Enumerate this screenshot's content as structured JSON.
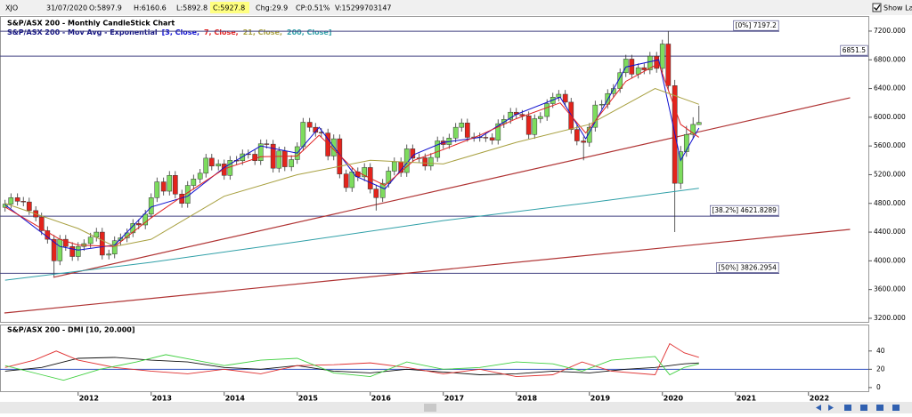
{
  "header": {
    "symbol": "XJO",
    "date": "31/07/2020",
    "open": "O:5897.9",
    "high": "H:6160.6",
    "low": "L:5892.8",
    "close": "C:5927.8",
    "change": "Chg:29.9",
    "change_pct": "CP:0.51%",
    "volume": "V:15299703147",
    "show_last": "Show Last"
  },
  "chart_data": [
    {
      "type": "candlestick",
      "title": "S&P/ASX 200 - Monthly CandleStick Chart",
      "subtitle": "S&P/ASX 200 - Mov Avg - Exponential",
      "up_color": "#7ddc5e",
      "down_color": "#e3241c",
      "xlim": [
        2010.93,
        2022.82
      ],
      "xticks": [
        2012,
        2013,
        2014,
        2015,
        2016,
        2017,
        2018,
        2019,
        2020,
        2021,
        2022
      ],
      "ylim": [
        3150,
        7410
      ],
      "yticks": [
        {
          "value": 3200,
          "label": "3200.000"
        },
        {
          "value": 3600,
          "label": "3600.000"
        },
        {
          "value": 4000,
          "label": "4000.000"
        },
        {
          "value": 4400,
          "label": "4400.000"
        },
        {
          "value": 4800,
          "label": "4800.000"
        },
        {
          "value": 5200,
          "label": "5200.000"
        },
        {
          "value": 5600,
          "label": "5600.000"
        },
        {
          "value": 6000,
          "label": "6000.000"
        },
        {
          "value": 6400,
          "label": "6400.000"
        },
        {
          "value": 6800,
          "label": "6800.000"
        },
        {
          "value": 7200,
          "label": "7200.000"
        }
      ],
      "grid": false,
      "candles": {
        "x": [
          2011,
          2011.08,
          2011.17,
          2011.25,
          2011.33,
          2011.42,
          2011.5,
          2011.58,
          2011.67,
          2011.75,
          2011.83,
          2011.92,
          2012,
          2012.08,
          2012.17,
          2012.25,
          2012.33,
          2012.42,
          2012.5,
          2012.58,
          2012.67,
          2012.75,
          2012.83,
          2012.92,
          2013,
          2013.08,
          2013.17,
          2013.25,
          2013.33,
          2013.42,
          2013.5,
          2013.58,
          2013.67,
          2013.75,
          2013.83,
          2013.92,
          2014,
          2014.08,
          2014.17,
          2014.25,
          2014.33,
          2014.42,
          2014.5,
          2014.58,
          2014.67,
          2014.75,
          2014.83,
          2014.92,
          2015,
          2015.08,
          2015.17,
          2015.25,
          2015.33,
          2015.42,
          2015.5,
          2015.58,
          2015.67,
          2015.75,
          2015.83,
          2015.92,
          2016,
          2016.08,
          2016.17,
          2016.25,
          2016.33,
          2016.42,
          2016.5,
          2016.58,
          2016.67,
          2016.75,
          2016.83,
          2016.92,
          2017,
          2017.08,
          2017.17,
          2017.25,
          2017.33,
          2017.42,
          2017.5,
          2017.58,
          2017.67,
          2017.75,
          2017.83,
          2017.92,
          2018,
          2018.08,
          2018.17,
          2018.25,
          2018.33,
          2018.42,
          2018.5,
          2018.58,
          2018.67,
          2018.75,
          2018.83,
          2018.92,
          2019,
          2019.08,
          2019.17,
          2019.25,
          2019.33,
          2019.42,
          2019.5,
          2019.58,
          2019.67,
          2019.75,
          2019.83,
          2019.92,
          2020,
          2020.08,
          2020.17,
          2020.25,
          2020.33,
          2020.42,
          2020.5
        ],
        "open": [
          4745,
          4790,
          4880,
          4830,
          4820,
          4700,
          4610,
          4420,
          4300,
          4000,
          4300,
          4200,
          4060,
          4200,
          4240,
          4330,
          4400,
          4080,
          4095,
          4280,
          4320,
          4390,
          4520,
          4500,
          4650,
          4880,
          5100,
          4970,
          5190,
          4930,
          4800,
          5050,
          5140,
          5220,
          5430,
          5320,
          5350,
          5190,
          5400,
          5395,
          5490,
          5485,
          5395,
          5630,
          5625,
          5290,
          5530,
          5310,
          5410,
          5590,
          5930,
          5860,
          5790,
          5780,
          5460,
          5700,
          5210,
          5020,
          5240,
          5170,
          5300,
          5000,
          4880,
          5080,
          5250,
          5380,
          5230,
          5560,
          5430,
          5435,
          5320,
          5440,
          5670,
          5620,
          5710,
          5860,
          5920,
          5720,
          5725,
          5720,
          5715,
          5680,
          5910,
          5970,
          6070,
          6040,
          6020,
          5760,
          5980,
          6010,
          6190,
          6280,
          6320,
          6210,
          5830,
          5670,
          5650,
          5860,
          6170,
          6180,
          6330,
          6400,
          6620,
          6810,
          6600,
          6690,
          6660,
          6850,
          6680,
          7020,
          6440,
          5080,
          5520,
          5760,
          5897.9
        ],
        "high": [
          4850,
          4940,
          4940,
          4890,
          4880,
          4760,
          4670,
          4480,
          4360,
          4360,
          4360,
          4260,
          4260,
          4300,
          4390,
          4460,
          4460,
          4155,
          4340,
          4380,
          4450,
          4580,
          4580,
          4710,
          4940,
          5160,
          5160,
          5250,
          5250,
          4990,
          5110,
          5200,
          5280,
          5490,
          5490,
          5410,
          5410,
          5460,
          5460,
          5550,
          5550,
          5545,
          5690,
          5690,
          5685,
          5590,
          5590,
          5470,
          5650,
          5990,
          5990,
          5920,
          5850,
          5840,
          5760,
          5760,
          5270,
          5300,
          5300,
          5360,
          5360,
          5060,
          5140,
          5310,
          5440,
          5440,
          5620,
          5620,
          5495,
          5495,
          5500,
          5730,
          5730,
          5770,
          5920,
          5980,
          5980,
          5785,
          5785,
          5780,
          5775,
          5970,
          6030,
          6130,
          6130,
          6100,
          6080,
          6040,
          6070,
          6250,
          6340,
          6380,
          6380,
          6270,
          5890,
          5730,
          5920,
          6230,
          6240,
          6390,
          6460,
          6680,
          6870,
          6870,
          6750,
          6750,
          6910,
          6910,
          7080,
          7200,
          6520,
          5600,
          5880,
          6000,
          6160.6
        ],
        "low": [
          4685,
          4730,
          4770,
          4760,
          4640,
          4550,
          4360,
          4240,
          3780,
          3940,
          4140,
          4000,
          4000,
          4140,
          4180,
          4270,
          4020,
          4020,
          4035,
          4220,
          4260,
          4330,
          4440,
          4440,
          4590,
          4820,
          4910,
          4910,
          4870,
          4740,
          4740,
          4990,
          5080,
          5160,
          5260,
          5260,
          5130,
          5130,
          5335,
          5335,
          5425,
          5335,
          5335,
          5565,
          5230,
          5230,
          5250,
          5250,
          5350,
          5530,
          5800,
          5730,
          5720,
          5400,
          5400,
          5150,
          4960,
          4960,
          5110,
          5110,
          4940,
          4700,
          4820,
          5020,
          5190,
          5170,
          5170,
          5370,
          5370,
          5260,
          5260,
          5380,
          5560,
          5560,
          5650,
          5800,
          5660,
          5660,
          5660,
          5655,
          5620,
          5620,
          5850,
          5910,
          5980,
          5960,
          5700,
          5700,
          5920,
          5950,
          6130,
          6220,
          6150,
          5770,
          5610,
          5400,
          5590,
          5800,
          6110,
          6120,
          6270,
          6340,
          6560,
          6540,
          6540,
          6600,
          6600,
          6620,
          6620,
          6380,
          4400,
          5000,
          5450,
          5700,
          5892.8
        ],
        "close": [
          4790,
          4880,
          4830,
          4820,
          4700,
          4610,
          4420,
          4300,
          4000,
          4300,
          4200,
          4060,
          4200,
          4240,
          4330,
          4400,
          4080,
          4095,
          4280,
          4320,
          4390,
          4520,
          4500,
          4650,
          4880,
          5100,
          4970,
          5190,
          4930,
          4800,
          5050,
          5140,
          5220,
          5430,
          5320,
          5350,
          5190,
          5400,
          5395,
          5490,
          5485,
          5395,
          5630,
          5625,
          5290,
          5530,
          5310,
          5410,
          5590,
          5930,
          5860,
          5790,
          5780,
          5460,
          5700,
          5210,
          5020,
          5240,
          5170,
          5300,
          5000,
          4880,
          5080,
          5250,
          5380,
          5230,
          5560,
          5430,
          5435,
          5320,
          5440,
          5670,
          5620,
          5710,
          5860,
          5920,
          5720,
          5725,
          5720,
          5715,
          5680,
          5910,
          5970,
          6070,
          6040,
          6020,
          5760,
          5980,
          6010,
          6190,
          6280,
          6320,
          6210,
          5830,
          5670,
          5650,
          5860,
          6170,
          6180,
          6330,
          6400,
          6620,
          6810,
          6600,
          6690,
          6660,
          6850,
          6680,
          7020,
          6440,
          5080,
          5520,
          5760,
          5900,
          5927.8
        ]
      },
      "series": [
        {
          "name": "[3, Close,",
          "color": "#1010d0",
          "x": [
            2011,
            2011.75,
            2012,
            2012.5,
            2013,
            2013.5,
            2014,
            2014.5,
            2015,
            2015.3,
            2015.8,
            2016.2,
            2016.6,
            2017,
            2017.5,
            2018,
            2018.6,
            2018.95,
            2019.5,
            2019.95,
            2020.25,
            2020.5
          ],
          "values": [
            4780,
            4200,
            4150,
            4220,
            4750,
            4900,
            5300,
            5600,
            5500,
            5860,
            5180,
            5000,
            5480,
            5650,
            5720,
            6040,
            6280,
            5700,
            6700,
            6800,
            5400,
            5850
          ]
        },
        {
          "name": "7, Close,",
          "color": "#e02020",
          "x": [
            2011,
            2011.75,
            2012,
            2012.5,
            2013,
            2013.5,
            2014,
            2014.5,
            2015,
            2015.3,
            2015.8,
            2016.2,
            2016.6,
            2017,
            2017.5,
            2018,
            2018.6,
            2018.95,
            2019.5,
            2019.95,
            2020.25,
            2020.5
          ],
          "values": [
            4750,
            4300,
            4220,
            4200,
            4600,
            4950,
            5280,
            5450,
            5460,
            5750,
            5250,
            5050,
            5400,
            5550,
            5750,
            5980,
            6200,
            5780,
            6500,
            6750,
            5900,
            5720
          ]
        },
        {
          "name": "21, Close,",
          "color": "#a8a040",
          "x": [
            2011,
            2012,
            2012.5,
            2013,
            2014,
            2015,
            2016,
            2017,
            2018,
            2019,
            2019.9,
            2020.5
          ],
          "values": [
            4800,
            4450,
            4200,
            4300,
            4900,
            5200,
            5400,
            5350,
            5650,
            5900,
            6400,
            6180
          ]
        },
        {
          "name": "200, Close]",
          "color": "#30a0a8",
          "x": [
            2011,
            2013,
            2015,
            2017,
            2019,
            2020.5
          ],
          "values": [
            3730,
            3980,
            4265,
            4560,
            4810,
            5010
          ]
        }
      ],
      "levels": [
        {
          "value": 7197.2,
          "label": "[0%] 7197.2",
          "color": "#404080",
          "x_end": 2021.6
        },
        {
          "value": 6851.5,
          "label": "6851.5",
          "color": "#404080"
        },
        {
          "value": 4621.8289,
          "label": "[38.2%] 4621.8289",
          "color": "#404080",
          "x_end": 2021.6
        },
        {
          "value": 3826.2954,
          "label": "[50%] 3826.2954",
          "color": "#404080",
          "x_end": 2021.6
        }
      ],
      "trendlines": [
        {
          "color": "#b03434",
          "x": [
            2011.66,
            2022.57
          ],
          "y": [
            3770,
            6271
          ]
        },
        {
          "color": "#b03434",
          "x": [
            2010.99,
            2022.57
          ],
          "y": [
            3274,
            4438
          ]
        }
      ]
    },
    {
      "type": "line",
      "title": "S&P/ASX 200 - DMI [10, 20.000]",
      "xlim": [
        2010.93,
        2022.82
      ],
      "ylim": [
        -4,
        68
      ],
      "yticks": [
        0,
        20,
        40
      ],
      "levels": [
        {
          "value": 20,
          "color": "#3050c0"
        }
      ],
      "series": [
        {
          "color": "#111111",
          "x": [
            2011,
            2011.5,
            2012,
            2012.5,
            2013,
            2013.5,
            2014,
            2014.5,
            2015,
            2015.5,
            2016,
            2016.5,
            2017,
            2017.5,
            2018,
            2018.5,
            2019,
            2019.5,
            2019.9,
            2020.3,
            2020.5
          ],
          "values": [
            18,
            22,
            32,
            33,
            30,
            28,
            22,
            20,
            24,
            18,
            16,
            20,
            17,
            14,
            15,
            18,
            16,
            20,
            22,
            26,
            27
          ]
        },
        {
          "color": "#e03030",
          "x": [
            2011,
            2011.4,
            2011.7,
            2012,
            2012.5,
            2013,
            2013.5,
            2014,
            2014.5,
            2015,
            2015.5,
            2016,
            2016.5,
            2017,
            2017.5,
            2018,
            2018.5,
            2018.9,
            2019.3,
            2019.9,
            2020.1,
            2020.3,
            2020.5
          ],
          "values": [
            22,
            30,
            40,
            30,
            22,
            18,
            15,
            20,
            15,
            24,
            25,
            27,
            22,
            15,
            20,
            12,
            14,
            28,
            18,
            14,
            48,
            38,
            33
          ]
        },
        {
          "color": "#40d040",
          "x": [
            2011,
            2011.5,
            2011.8,
            2012.3,
            2012.8,
            2013.2,
            2013.6,
            2014,
            2014.5,
            2015,
            2015.5,
            2016,
            2016.5,
            2017,
            2017.5,
            2018,
            2018.5,
            2018.9,
            2019.3,
            2019.9,
            2020.1,
            2020.3,
            2020.5
          ],
          "values": [
            24,
            14,
            8,
            20,
            28,
            36,
            30,
            24,
            30,
            32,
            16,
            12,
            28,
            20,
            22,
            28,
            26,
            18,
            30,
            34,
            14,
            22,
            26
          ]
        }
      ]
    }
  ]
}
